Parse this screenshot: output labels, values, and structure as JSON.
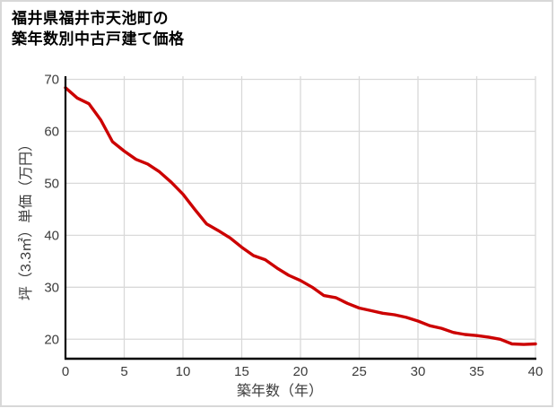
{
  "title": {
    "line1": "福井県福井市天池町の",
    "line2": "築年数別中古戸建て価格"
  },
  "chart_data": {
    "type": "line",
    "title": "福井県福井市天池町の築年数別中古戸建て価格",
    "xlabel": "築年数（年）",
    "ylabel": "坪（3.3㎡）単価（万円）",
    "x": [
      0,
      1,
      2,
      3,
      4,
      5,
      6,
      7,
      8,
      9,
      10,
      11,
      12,
      13,
      14,
      15,
      16,
      17,
      18,
      19,
      20,
      21,
      22,
      23,
      24,
      25,
      26,
      27,
      28,
      29,
      30,
      31,
      32,
      33,
      34,
      35,
      36,
      37,
      38,
      39,
      40
    ],
    "series": [
      {
        "name": "坪単価",
        "color": "#cc0000",
        "values": [
          68.4,
          66.4,
          65.3,
          62.2,
          58.0,
          56.2,
          54.6,
          53.7,
          52.2,
          50.2,
          47.9,
          45.0,
          42.2,
          40.9,
          39.5,
          37.7,
          36.1,
          35.3,
          33.7,
          32.3,
          31.3,
          30.0,
          28.4,
          28.0,
          26.9,
          26.0,
          25.5,
          25.0,
          24.7,
          24.2,
          23.5,
          22.6,
          22.1,
          21.3,
          20.9,
          20.7,
          20.4,
          20.0,
          19.1,
          19.0,
          19.1
        ]
      }
    ],
    "xlim": [
      0,
      40
    ],
    "ylim": [
      16.25,
      70.6
    ],
    "x_ticks": [
      "0",
      "5",
      "10",
      "15",
      "20",
      "25",
      "30",
      "35",
      "40"
    ],
    "y_ticks": [
      "20",
      "30",
      "40",
      "50",
      "60",
      "70"
    ],
    "grid": true,
    "legend": "none",
    "colors": {
      "line": "#cc0000",
      "grid": "#d9d9d9",
      "axis": "#000000",
      "tick_label": "#3c3c3c",
      "frame_border": "#d8d8d8",
      "background": "#ffffff"
    }
  }
}
